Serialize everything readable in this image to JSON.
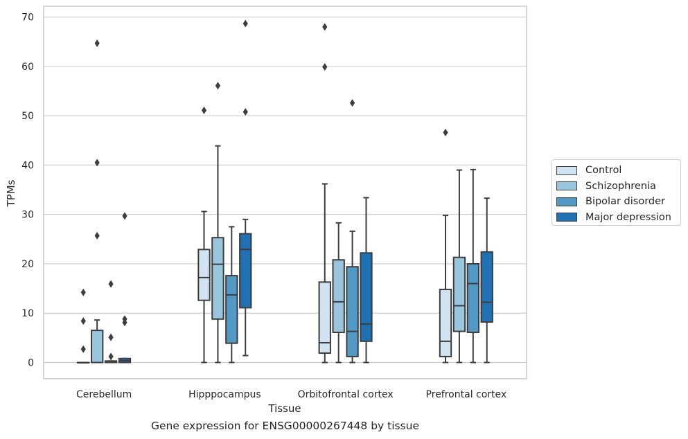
{
  "chart_data": {
    "type": "box",
    "xlabel": "Tissue",
    "ylabel": "TPMs",
    "caption": "Gene expression for ENSG00000267448 by tissue",
    "ylim": [
      -3.3,
      72.2
    ],
    "yticks": [
      0,
      10,
      20,
      30,
      40,
      50,
      60,
      70
    ],
    "grid": true,
    "legend_position": "right",
    "categories": [
      "Cerebellum",
      "Hipppocampus",
      "Orbitofrontal cortex",
      "Prefrontal cortex"
    ],
    "series": [
      {
        "name": "Control",
        "color": "#d1e2f1",
        "boxes": [
          {
            "whislo": 0,
            "q1": 0,
            "med": 0,
            "q3": 0,
            "whishi": 0,
            "fliers": [
              2.7,
              8.4,
              14.2
            ]
          },
          {
            "whislo": 0,
            "q1": 12.6,
            "med": 17.2,
            "q3": 22.9,
            "whishi": 30.6,
            "fliers": [
              51.1
            ]
          },
          {
            "whislo": 0,
            "q1": 1.9,
            "med": 4.0,
            "q3": 16.3,
            "whishi": 36.2,
            "fliers": [
              59.9,
              68.0
            ]
          },
          {
            "whislo": 0,
            "q1": 1.2,
            "med": 4.3,
            "q3": 14.8,
            "whishi": 29.8,
            "fliers": [
              46.6
            ]
          }
        ]
      },
      {
        "name": "Schizophrenia",
        "color": "#9ac5de",
        "boxes": [
          {
            "whislo": 0,
            "q1": 0,
            "med": 0,
            "q3": 6.5,
            "whishi": 8.6,
            "fliers": [
              25.7,
              40.5,
              64.7
            ]
          },
          {
            "whislo": 0,
            "q1": 8.8,
            "med": 19.9,
            "q3": 25.3,
            "whishi": 43.9,
            "fliers": [
              56.1
            ]
          },
          {
            "whislo": 0,
            "q1": 6.1,
            "med": 12.3,
            "q3": 20.8,
            "whishi": 28.3,
            "fliers": []
          },
          {
            "whislo": 0,
            "q1": 6.3,
            "med": 11.5,
            "q3": 21.3,
            "whishi": 39.0,
            "fliers": []
          }
        ]
      },
      {
        "name": "Bipolar disorder",
        "color": "#5399c6",
        "boxes": [
          {
            "whislo": 0,
            "q1": 0,
            "med": 0,
            "q3": 0.3,
            "whishi": 0.3,
            "fliers": [
              1.2,
              5.1,
              15.9
            ]
          },
          {
            "whislo": 0,
            "q1": 3.9,
            "med": 13.7,
            "q3": 17.6,
            "whishi": 27.5,
            "fliers": []
          },
          {
            "whislo": 0,
            "q1": 1.2,
            "med": 6.3,
            "q3": 19.4,
            "whishi": 26.6,
            "fliers": [
              52.6
            ]
          },
          {
            "whislo": 0,
            "q1": 6.1,
            "med": 16.0,
            "q3": 20.0,
            "whishi": 39.1,
            "fliers": []
          }
        ]
      },
      {
        "name": "Major depression",
        "color": "#2070b4",
        "boxes": [
          {
            "whislo": 0,
            "q1": 0,
            "med": 0.4,
            "q3": 0.8,
            "whishi": 0.8,
            "fliers": [
              8.1,
              8.8,
              29.7
            ]
          },
          {
            "whislo": 1.4,
            "q1": 11.1,
            "med": 22.9,
            "q3": 26.1,
            "whishi": 29.0,
            "fliers": [
              50.8,
              68.7
            ]
          },
          {
            "whislo": 0,
            "q1": 4.3,
            "med": 7.8,
            "q3": 22.2,
            "whishi": 33.4,
            "fliers": []
          },
          {
            "whislo": 0,
            "q1": 8.2,
            "med": 12.2,
            "q3": 22.4,
            "whishi": 33.3,
            "fliers": []
          }
        ]
      }
    ]
  }
}
